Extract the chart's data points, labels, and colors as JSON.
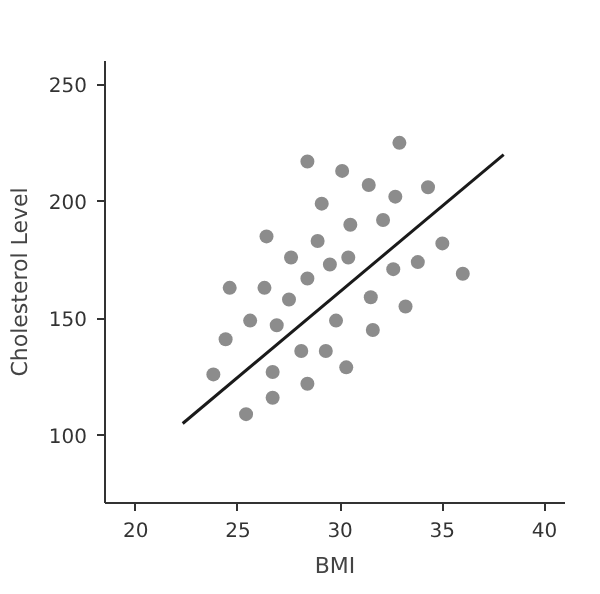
{
  "chart_data": {
    "type": "scatter",
    "xlabel": "BMI",
    "ylabel": "Cholesterol Level",
    "xlim": [
      18.5,
      41
    ],
    "ylim": [
      71,
      260
    ],
    "xticks": [
      20,
      25,
      30,
      35,
      40
    ],
    "yticks": [
      100,
      150,
      200,
      250
    ],
    "grid": false,
    "series": [
      {
        "marker": "circle",
        "color": "#8c8c8c",
        "x": [
          23.8,
          24.4,
          24.6,
          25.6,
          25.4,
          26.4,
          26.3,
          26.9,
          26.7,
          26.7,
          27.6,
          27.5,
          28.1,
          28.4,
          28.4,
          28.4,
          28.9,
          29.1,
          29.5,
          29.3,
          29.8,
          30.1,
          30.4,
          30.5,
          30.3,
          31.4,
          31.5,
          31.6,
          32.1,
          32.6,
          32.7,
          32.9,
          33.2,
          33.8,
          34.3,
          35.0,
          36.0
        ],
        "values": [
          126,
          141,
          163,
          149,
          109,
          185,
          163,
          147,
          127,
          116,
          176,
          158,
          136,
          217,
          167,
          122,
          183,
          199,
          173,
          136,
          149,
          213,
          176,
          190,
          129,
          207,
          159,
          145,
          192,
          171,
          202,
          225,
          155,
          174,
          206,
          182,
          169
        ]
      },
      {
        "type": "line",
        "marker": "none",
        "color": "#1a1a1a",
        "x": [
          22.3,
          38.0
        ],
        "values": [
          105,
          220
        ]
      }
    ]
  }
}
